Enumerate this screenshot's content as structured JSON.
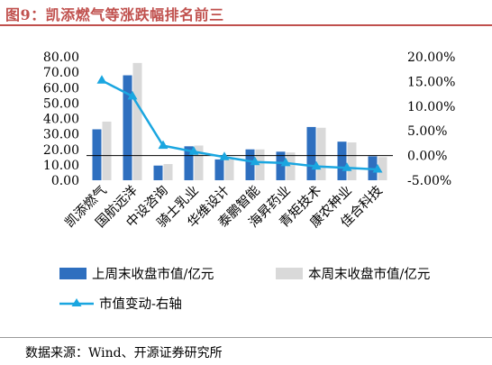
{
  "title": "图9：凯添燃气等涨跌幅排名前三",
  "source": "数据来源：Wind、开源证券研究所",
  "colors": {
    "title": "#c0504d",
    "prev_bar": "#2e6fbf",
    "curr_bar": "#d9d9d9",
    "line": "#1aa6e0"
  },
  "chart_data": {
    "type": "bar",
    "categories": [
      "凯添燃气",
      "国航远洋",
      "中设咨询",
      "骑士乳业",
      "华维设计",
      "泰鹏智能",
      "海昇药业",
      "青矩技术",
      "康农种业",
      "佳合科技"
    ],
    "series": [
      {
        "name": "上周末收盘市值/亿元",
        "type": "bar",
        "axis": "left",
        "values": [
          33.0,
          68.0,
          9.5,
          22.0,
          13.5,
          20.0,
          18.5,
          34.5,
          25.0,
          15.5
        ]
      },
      {
        "name": "本周末收盘市值/亿元",
        "type": "bar",
        "axis": "left",
        "values": [
          38.0,
          76.0,
          10.5,
          22.5,
          13.5,
          20.0,
          18.0,
          34.0,
          24.5,
          15.0
        ]
      },
      {
        "name": "市值变动-右轴",
        "type": "line",
        "axis": "right",
        "values": [
          15.2,
          12.0,
          2.0,
          0.8,
          -0.3,
          -1.3,
          -1.5,
          -2.2,
          -2.5,
          -2.8
        ]
      }
    ],
    "y_left": {
      "min": 0,
      "max": 80,
      "step": 10,
      "tick_labels": [
        "0.00",
        "10.00",
        "20.00",
        "30.00",
        "40.00",
        "50.00",
        "60.00",
        "70.00",
        "80.00"
      ]
    },
    "y_right": {
      "min": -5,
      "max": 20,
      "step": 5,
      "tick_labels": [
        "-5.00%",
        "0.00%",
        "5.00%",
        "10.00%",
        "15.00%",
        "20.00%"
      ]
    },
    "legend_placement": "bottom",
    "grid": false
  }
}
